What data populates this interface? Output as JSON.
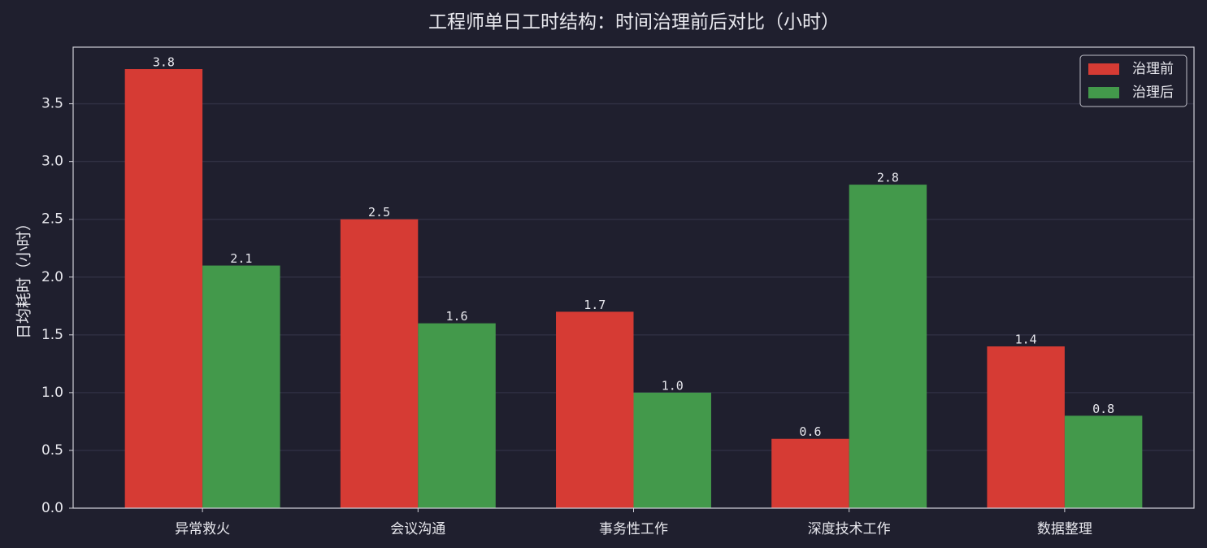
{
  "chart_data": {
    "type": "bar",
    "title": "工程师单日工时结构：时间治理前后对比（小时）",
    "ylabel": "日均耗时（小时）",
    "categories": [
      "异常救火",
      "会议沟通",
      "事务性工作",
      "深度技术工作",
      "数据整理"
    ],
    "series": [
      {
        "name": "治理前",
        "color": "#d63b34",
        "values": [
          3.8,
          2.5,
          1.7,
          0.6,
          1.4
        ],
        "value_labels": [
          "3.8",
          "2.5",
          "1.7",
          "0.6",
          "1.4"
        ]
      },
      {
        "name": "治理后",
        "color": "#43994b",
        "values": [
          2.1,
          1.6,
          1.0,
          2.8,
          0.8
        ],
        "value_labels": [
          "2.1",
          "1.6",
          "1.0",
          "2.8",
          "0.8"
        ]
      }
    ],
    "ylim": [
      0,
      3.99
    ],
    "yticks": [
      {
        "value": 0,
        "label": "0.0"
      },
      0.5,
      {
        "value": 1,
        "label": "1.0"
      },
      1.5,
      {
        "value": 2,
        "label": "2.0"
      },
      2.5,
      {
        "value": 3,
        "label": "3.0"
      },
      3.5
    ],
    "grid": true,
    "legend": "upper right"
  }
}
